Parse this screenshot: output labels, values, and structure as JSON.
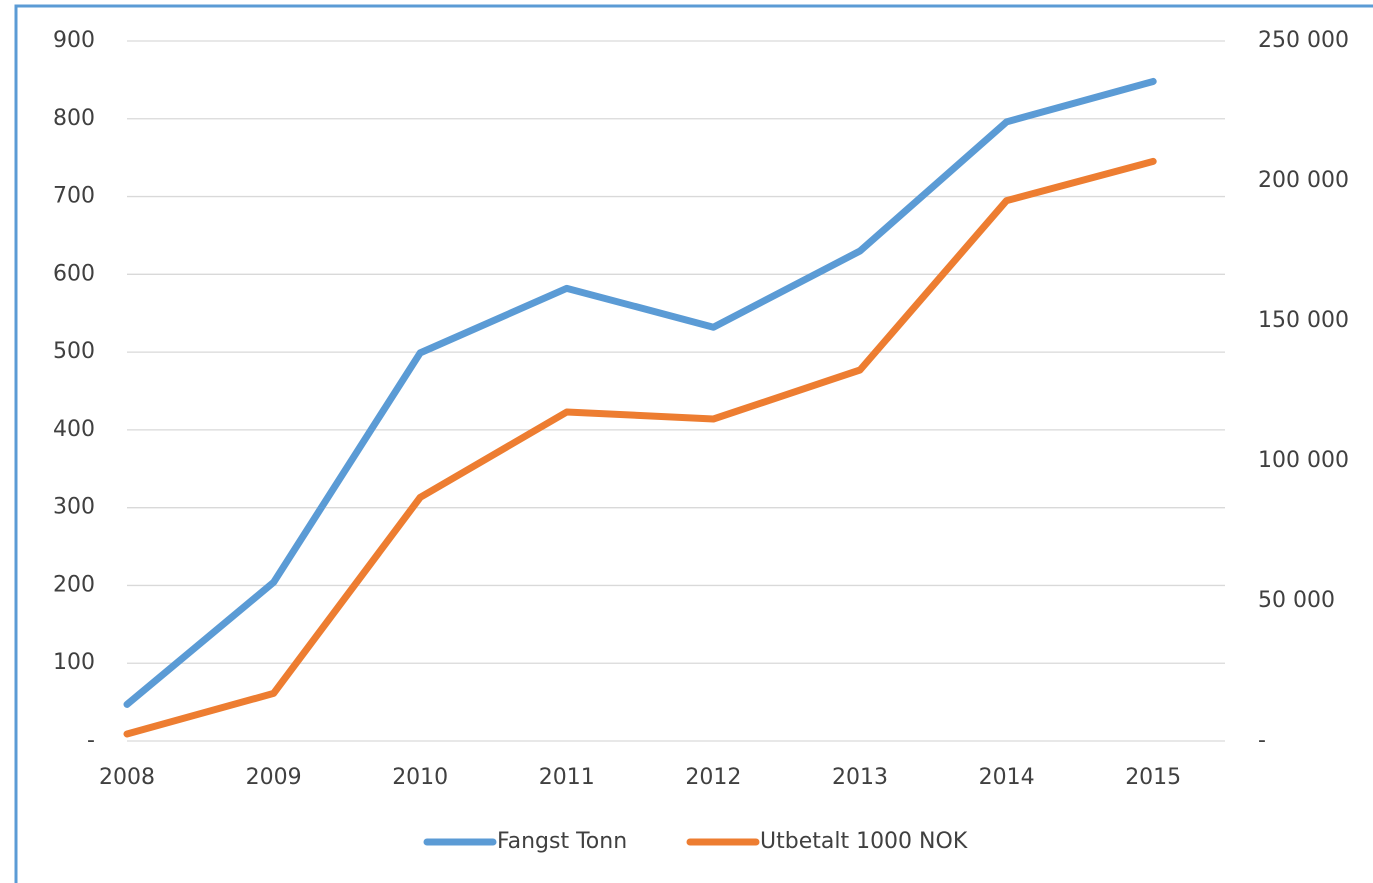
{
  "chart_data": {
    "type": "line",
    "categories": [
      "2008",
      "2009",
      "2010",
      "2011",
      "2012",
      "2013",
      "2014",
      "2015"
    ],
    "series": [
      {
        "name": "Fangst Tonn",
        "color": "#5b9bd5",
        "values": [
          47,
          204,
          499,
          582,
          532,
          630,
          796,
          848
        ]
      },
      {
        "name": "Utbetalt 1000 NOK",
        "color": "#ed7d31",
        "axis": "y2",
        "values": [
          2500,
          17000,
          87000,
          117500,
          115000,
          132500,
          193000,
          207000
        ]
      }
    ],
    "ylim": [
      0,
      900
    ],
    "yticks": [
      {
        "value": 0,
        "label": "-"
      },
      100,
      200,
      300,
      400,
      500,
      600,
      700,
      800,
      900
    ],
    "y2lim": [
      0,
      250000
    ],
    "y2ticks": [
      {
        "value": 0,
        "label": "-"
      },
      {
        "value": 50000,
        "label": "50 000"
      },
      {
        "value": 100000,
        "label": "100 000"
      },
      {
        "value": 150000,
        "label": "150 000"
      },
      {
        "value": 200000,
        "label": "200 000"
      },
      {
        "value": 250000,
        "label": "250 000"
      }
    ],
    "grid": true,
    "legend": "bottom"
  }
}
